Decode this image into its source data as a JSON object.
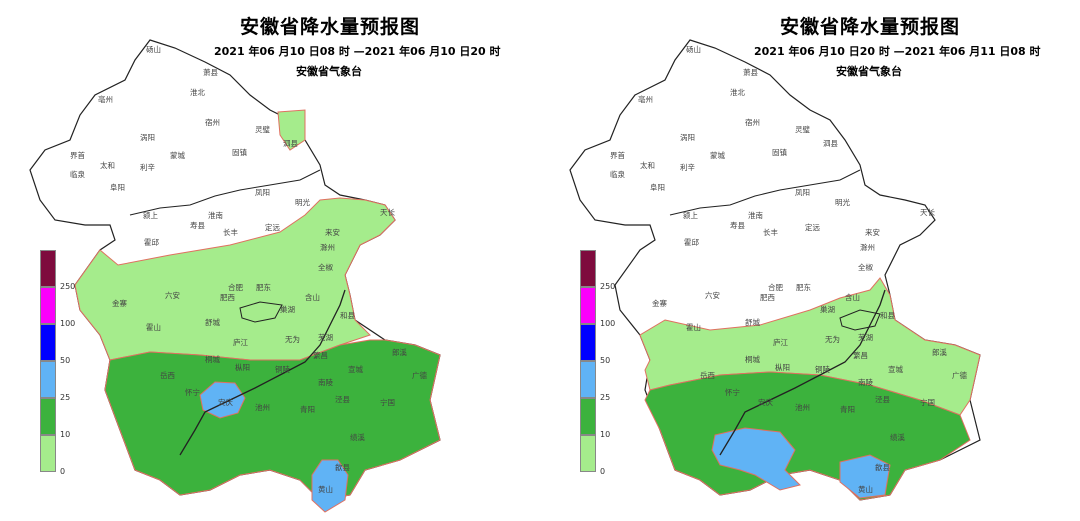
{
  "colors": {
    "c0": "#a5ec8c",
    "c10": "#3cb23d",
    "c25": "#60b3f5",
    "c50": "#0000ff",
    "c100": "#fb00fb",
    "c250": "#7e0b3d",
    "border": "#222222",
    "outline": "#e07060"
  },
  "legend": {
    "levels": [
      "0",
      "10",
      "25",
      "50",
      "100",
      "250"
    ]
  },
  "panels": [
    {
      "title": "安徽省降水量预报图",
      "range": "2021 年06 月10 日08 时 —2021 年06 月10 日20 时",
      "agency": "安徽省气象台"
    },
    {
      "title": "安徽省降水量预报图",
      "range": "2021 年06 月10 日20 时 —2021 年06 月11 日08 时",
      "agency": "安徽省气象台"
    }
  ],
  "cities": [
    "砀山",
    "萧县",
    "淮北",
    "亳州",
    "宿州",
    "灵璧",
    "泗县",
    "涡阳",
    "蒙城",
    "固镇",
    "界首",
    "太和",
    "利辛",
    "临泉",
    "阜阳",
    "凤阳",
    "明光",
    "颍上",
    "淮南",
    "寿县",
    "长丰",
    "定远",
    "天长",
    "来安",
    "滁州",
    "霍邱",
    "六安",
    "合肥",
    "肥东",
    "肥西",
    "全椒",
    "金寨",
    "含山",
    "和县",
    "舒城",
    "巢湖",
    "霍山",
    "庐江",
    "无为",
    "芜湖",
    "宣城",
    "枞阳",
    "铜陵",
    "繁昌",
    "郎溪",
    "广德",
    "桐城",
    "南陵",
    "泾县",
    "宁国",
    "安庆",
    "池州",
    "青阳",
    "黄山",
    "歙县",
    "绩溪",
    "怀宁",
    "岳西"
  ]
}
